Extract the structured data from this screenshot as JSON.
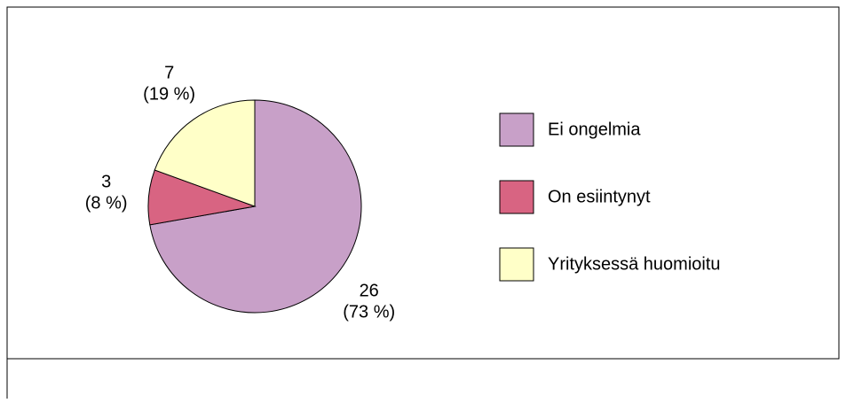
{
  "chart_data": {
    "type": "pie",
    "categories": [
      "Ei ongelmia",
      "On esiintynyt",
      "Yrityksessä huomioitu"
    ],
    "values": [
      26,
      3,
      7
    ],
    "percent_labels": [
      "(73 %)",
      "(8 %)",
      "(19 %)"
    ],
    "colors": [
      "#c8a0c8",
      "#d86482",
      "#ffffc8"
    ],
    "legend": "right"
  }
}
